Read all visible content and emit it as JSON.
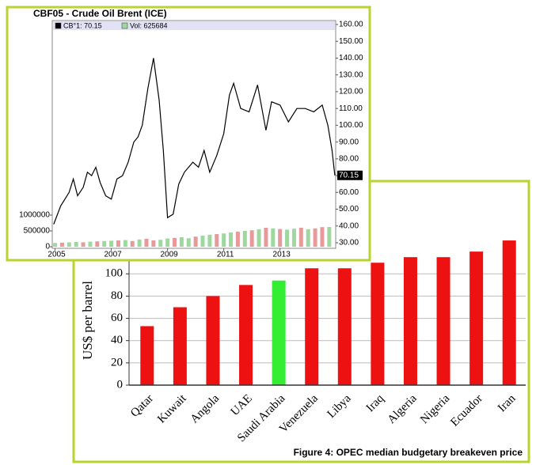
{
  "chart_data": [
    {
      "type": "line",
      "title": "CBF05 - Crude Oil Brent (ICE)",
      "xlim": [
        2004.9,
        2014.98
      ],
      "xticks": [
        2005,
        2007,
        2009,
        2011,
        2013
      ],
      "ylim": [
        30,
        160
      ],
      "yticks": [
        {
          "value": 30,
          "label": "30.00"
        },
        {
          "value": 40,
          "label": "40.00"
        },
        {
          "value": 50,
          "label": "50.00"
        },
        {
          "value": 60,
          "label": "60.00"
        },
        {
          "value": 70,
          "label": "70.00"
        },
        {
          "value": 80,
          "label": "80.00"
        },
        {
          "value": 90,
          "label": "90.00"
        },
        {
          "value": 100,
          "label": "100.00"
        },
        {
          "value": 110,
          "label": "110.00"
        },
        {
          "value": 120,
          "label": "120.00"
        },
        {
          "value": 130,
          "label": "130.00"
        },
        {
          "value": 140,
          "label": "140.00"
        },
        {
          "value": 150,
          "label": "150.00"
        },
        {
          "value": 160,
          "label": "160.00"
        }
      ],
      "y2lim": [
        0,
        7000000
      ],
      "y2ticks": [
        0,
        500000,
        1000000
      ],
      "series": [
        {
          "name": "CB°1: 70.15",
          "color": "#000000",
          "x": [
            2004.95,
            2005.2,
            2005.35,
            2005.5,
            2005.65,
            2005.8,
            2006.0,
            2006.15,
            2006.3,
            2006.45,
            2006.6,
            2006.8,
            2007.0,
            2007.2,
            2007.4,
            2007.6,
            2007.8,
            2007.95,
            2008.1,
            2008.3,
            2008.5,
            2008.7,
            2008.85,
            2009.0,
            2009.2,
            2009.4,
            2009.6,
            2009.9,
            2010.1,
            2010.3,
            2010.5,
            2010.75,
            2011.0,
            2011.2,
            2011.35,
            2011.6,
            2011.9,
            2012.2,
            2012.5,
            2012.7,
            2013.0,
            2013.3,
            2013.6,
            2013.9,
            2014.2,
            2014.5,
            2014.7,
            2014.85,
            2014.95
          ],
          "values": [
            41,
            52,
            56,
            60,
            68,
            58,
            63,
            72,
            70,
            75,
            66,
            58,
            56,
            68,
            70,
            78,
            90,
            93,
            100,
            122,
            140,
            115,
            85,
            45,
            47,
            65,
            72,
            78,
            75,
            85,
            72,
            82,
            95,
            118,
            125,
            110,
            108,
            124,
            97,
            114,
            112,
            102,
            110,
            110,
            108,
            112,
            100,
            85,
            70.15
          ]
        },
        {
          "name": "Vol: 625684",
          "axis": "y2",
          "x": [
            2005.0,
            2005.25,
            2005.5,
            2005.75,
            2006.0,
            2006.25,
            2006.5,
            2006.75,
            2007.0,
            2007.25,
            2007.5,
            2007.75,
            2008.0,
            2008.25,
            2008.5,
            2008.75,
            2009.0,
            2009.25,
            2009.5,
            2009.75,
            2010.0,
            2010.25,
            2010.5,
            2010.75,
            2011.0,
            2011.25,
            2011.5,
            2011.75,
            2012.0,
            2012.25,
            2012.5,
            2012.75,
            2013.0,
            2013.25,
            2013.5,
            2013.75,
            2014.0,
            2014.25,
            2014.5,
            2014.75
          ],
          "values": [
            120000,
            130000,
            140000,
            150000,
            140000,
            160000,
            170000,
            180000,
            190000,
            200000,
            210000,
            180000,
            230000,
            250000,
            200000,
            220000,
            260000,
            280000,
            300000,
            270000,
            320000,
            350000,
            380000,
            400000,
            420000,
            450000,
            480000,
            500000,
            520000,
            550000,
            600000,
            580000,
            560000,
            540000,
            570000,
            600000,
            550000,
            580000,
            620000,
            625684
          ],
          "colors": [
            "#9ed89e",
            "#e89a9a",
            "#9ed89e",
            "#9ed89e",
            "#e89a9a",
            "#9ed89e",
            "#e89a9a",
            "#9ed89e",
            "#9ed89e",
            "#e89a9a",
            "#9ed89e",
            "#e89a9a",
            "#9ed89e",
            "#e89a9a",
            "#e89a9a",
            "#9ed89e",
            "#9ed89e",
            "#e89a9a",
            "#9ed89e",
            "#9ed89e",
            "#e89a9a",
            "#9ed89e",
            "#9ed89e",
            "#e89a9a",
            "#9ed89e",
            "#9ed89e",
            "#e89a9a",
            "#9ed89e",
            "#e89a9a",
            "#9ed89e",
            "#e89a9a",
            "#9ed89e",
            "#e89a9a",
            "#9ed89e",
            "#9ed89e",
            "#e89a9a",
            "#9ed89e",
            "#e89a9a",
            "#e89a9a",
            "#9ed89e"
          ]
        }
      ],
      "annotations": [
        {
          "x": 2014.95,
          "y": 70.15,
          "label": "70.15"
        }
      ]
    },
    {
      "type": "bar",
      "ylabel": "US$ per barrel",
      "caption": "Figure 4: OPEC median budgetary breakeven price",
      "categories": [
        "Qatar",
        "Kuwait",
        "Angola",
        "UAE",
        "Saudi Arabia",
        "Venezuela",
        "Libya",
        "Iraq",
        "Algeria",
        "Nigeria",
        "Ecuador",
        "Iran"
      ],
      "values": [
        53,
        70,
        80,
        90,
        94,
        105,
        105,
        110,
        115,
        115,
        120,
        130
      ],
      "colors": [
        "#ee1111",
        "#ee1111",
        "#ee1111",
        "#ee1111",
        "#33ee33",
        "#ee1111",
        "#ee1111",
        "#ee1111",
        "#ee1111",
        "#ee1111",
        "#ee1111",
        "#ee1111"
      ],
      "ylim": [
        0,
        140
      ],
      "yticks": [
        0,
        20,
        40,
        60,
        80,
        100
      ],
      "grid": true
    }
  ]
}
